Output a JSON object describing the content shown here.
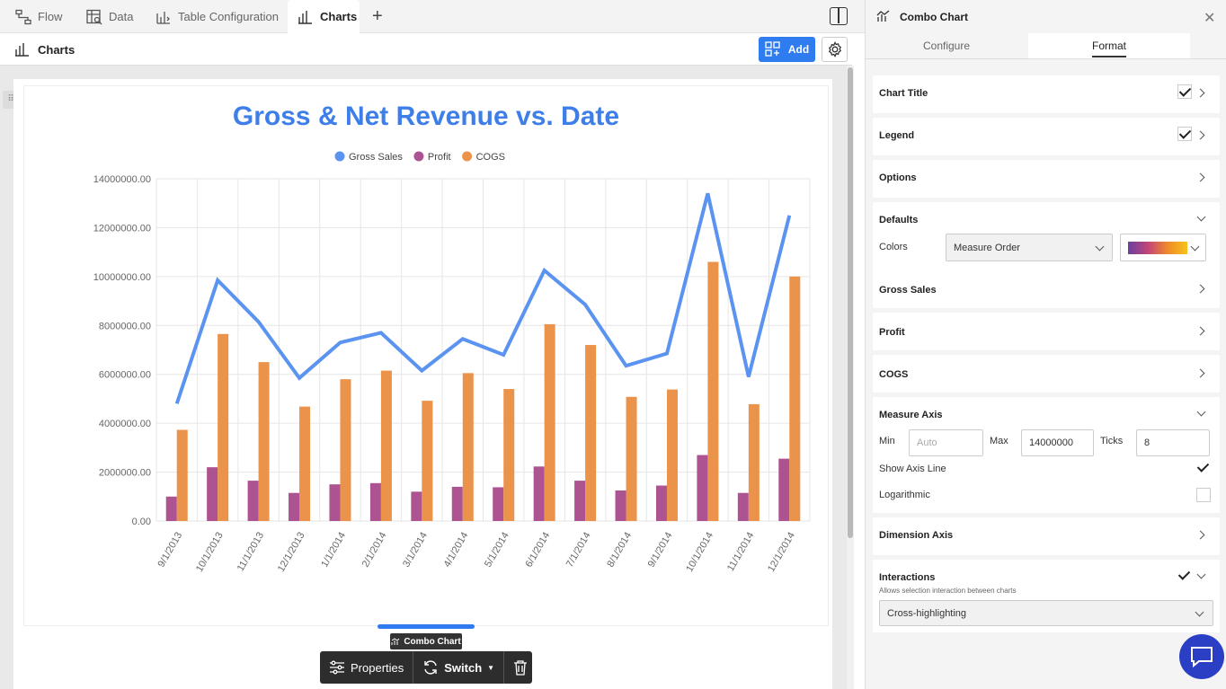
{
  "tabs": [
    {
      "label": "Flow",
      "icon": "flow-icon"
    },
    {
      "label": "Data",
      "icon": "data-icon"
    },
    {
      "label": "Table Configuration",
      "icon": "table-config-icon"
    },
    {
      "label": "Charts",
      "icon": "charts-icon",
      "active": true
    }
  ],
  "header": {
    "title": "Charts",
    "add_label": "Add"
  },
  "chart_data": {
    "type": "bar",
    "title": "Gross & Net Revenue vs. Date",
    "categories": [
      "9/1/2013",
      "10/1/2013",
      "11/1/2013",
      "12/1/2013",
      "1/1/2014",
      "2/1/2014",
      "3/1/2014",
      "4/1/2014",
      "5/1/2014",
      "6/1/2014",
      "7/1/2014",
      "8/1/2014",
      "9/1/2014",
      "10/1/2014",
      "11/1/2014",
      "12/1/2014"
    ],
    "series": [
      {
        "name": "Gross Sales",
        "type": "line",
        "color": "#5a93f0",
        "values": [
          4800000,
          9850000,
          8150000,
          5850000,
          7300000,
          7700000,
          6150000,
          7450000,
          6800000,
          10250000,
          8850000,
          6350000,
          6850000,
          13400000,
          5900000,
          12500000
        ]
      },
      {
        "name": "Profit",
        "type": "bar",
        "color": "#ad5391",
        "values": [
          1000000,
          2200000,
          1650000,
          1150000,
          1500000,
          1550000,
          1200000,
          1400000,
          1380000,
          2230000,
          1650000,
          1250000,
          1450000,
          2700000,
          1150000,
          2550000
        ]
      },
      {
        "name": "COGS",
        "type": "bar",
        "color": "#eb924b",
        "values": [
          3730000,
          7650000,
          6500000,
          4680000,
          5800000,
          6150000,
          4920000,
          6050000,
          5400000,
          8050000,
          7200000,
          5080000,
          5380000,
          10600000,
          4780000,
          10000000
        ]
      }
    ],
    "ylim": [
      0,
      14000000
    ],
    "yticks": [
      "0.00",
      "2000000.00",
      "4000000.00",
      "6000000.00",
      "8000000.00",
      "10000000.00",
      "12000000.00",
      "14000000.00"
    ],
    "grid": true,
    "legend": "top"
  },
  "selection_tag": "Combo Chart",
  "toolbar": {
    "properties": "Properties",
    "switch": "Switch"
  },
  "panel": {
    "title": "Combo Chart",
    "tabs": [
      "Configure",
      "Format"
    ],
    "active_tab": "Format",
    "sections": {
      "chart_title": "Chart Title",
      "legend": "Legend",
      "options": "Options",
      "defaults": "Defaults",
      "colors_label": "Colors",
      "colors_value": "Measure Order",
      "gross_sales": "Gross Sales",
      "profit": "Profit",
      "cogs": "COGS",
      "measure_axis": "Measure Axis",
      "min_label": "Min",
      "min_placeholder": "Auto",
      "max_label": "Max",
      "max_value": "14000000",
      "ticks_label": "Ticks",
      "ticks_value": "8",
      "show_axis_line": "Show Axis Line",
      "logarithmic": "Logarithmic",
      "dimension_axis": "Dimension Axis",
      "interactions": "Interactions",
      "interactions_desc": "Allows selection interaction between charts",
      "interactions_value": "Cross-highlighting"
    }
  }
}
